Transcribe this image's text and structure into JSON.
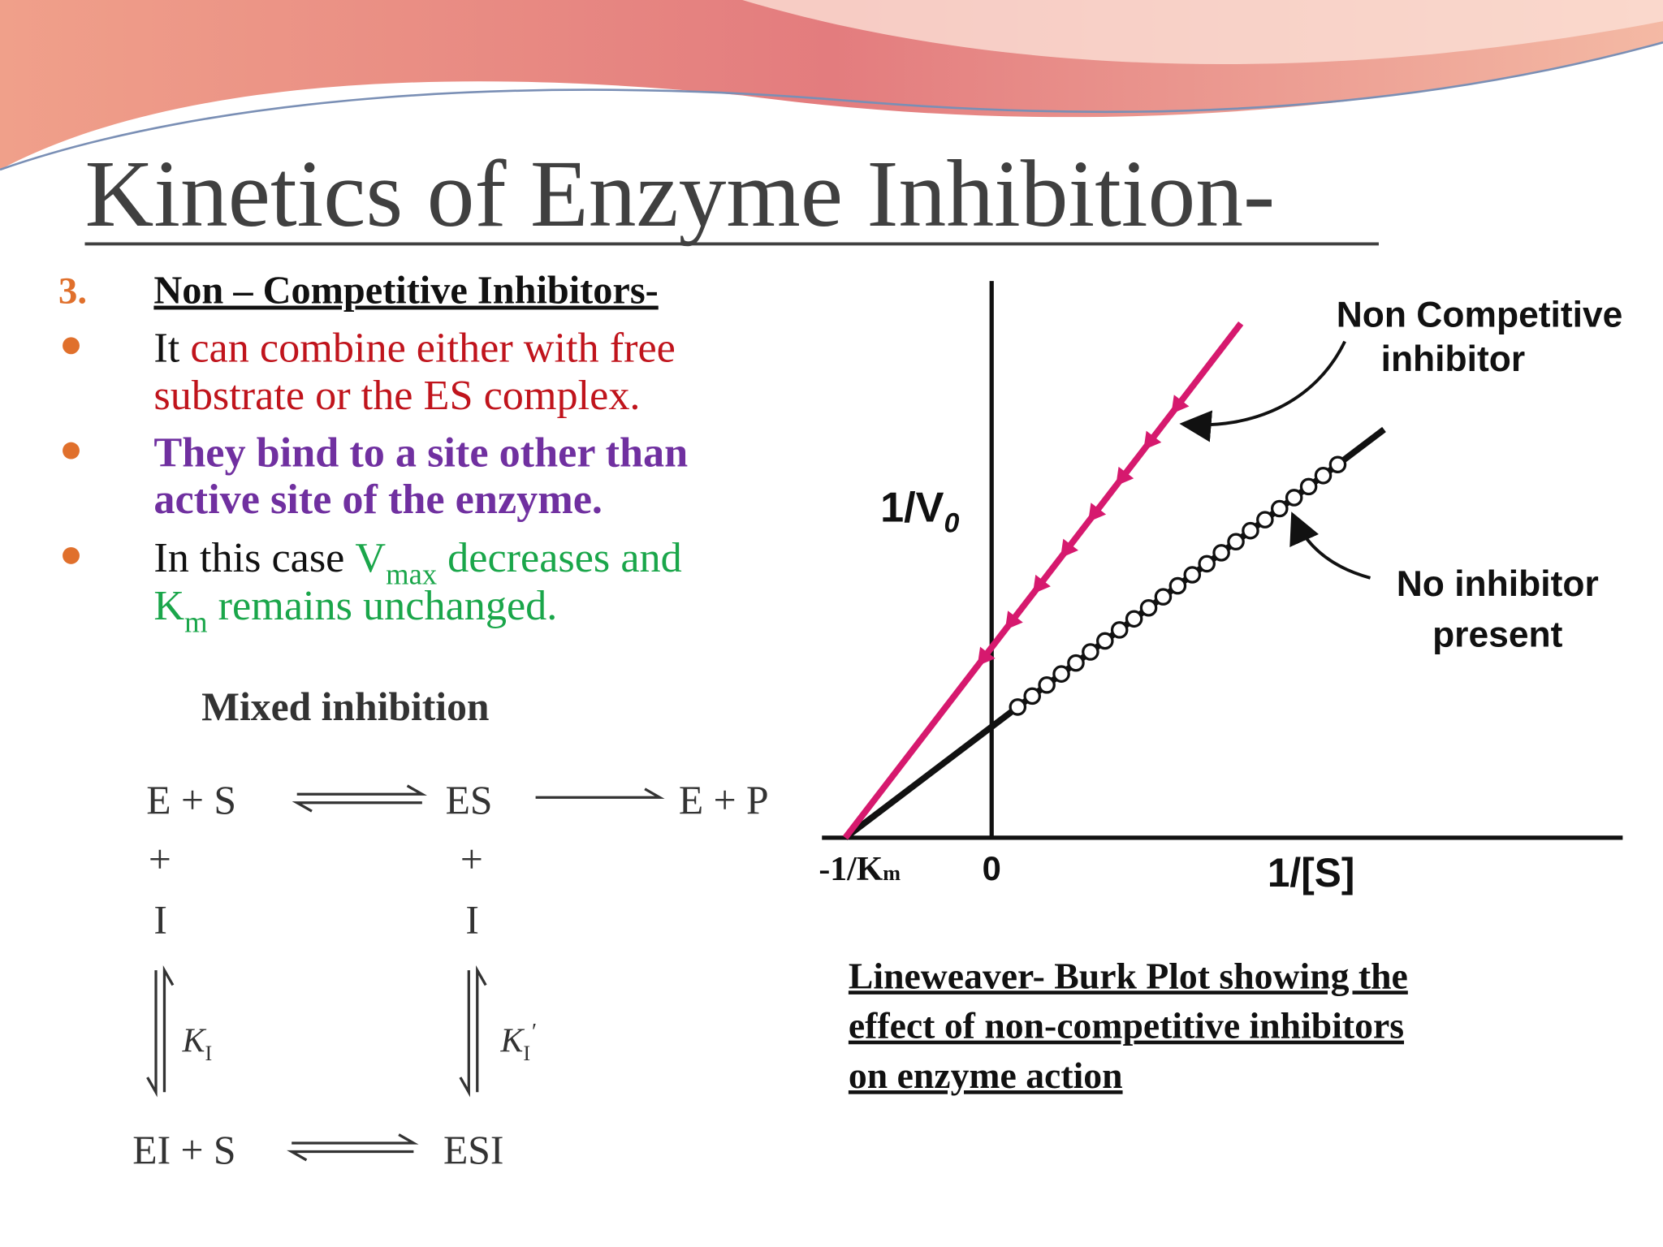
{
  "title": "Kinetics of Enzyme Inhibition-",
  "heading": {
    "number": "3.",
    "text": "Non – Competitive Inhibitors-"
  },
  "bullets": [
    {
      "lines": [
        [
          "It ",
          "can combine either with free"
        ],
        [
          "substrate or the ES complex."
        ]
      ]
    },
    {
      "lines": [
        [
          "They bind to a site other than"
        ],
        [
          "active site of the enzyme."
        ]
      ]
    },
    {
      "lines": [
        [
          "In this case ",
          "V",
          "max",
          " decreases and"
        ],
        [
          "K",
          "m",
          " remains unchanged."
        ]
      ]
    }
  ],
  "scheme": {
    "title": "Mixed inhibition",
    "e_s": "E + S",
    "es": "ES",
    "e_p": "E + P",
    "plus_left": "+",
    "plus_right": "+",
    "i_left": "I",
    "i_right": "I",
    "k_left": [
      "K",
      "I"
    ],
    "k_right": [
      "K",
      "I",
      "′"
    ],
    "ei_s": "EI + S",
    "esi": "ESI"
  },
  "plot": {
    "y_label": [
      "1/V",
      "0"
    ],
    "x_intercept": [
      "-1/K",
      "m"
    ],
    "origin": "0",
    "x_label": "1/[S]",
    "inhibitor_label": [
      "Non Competitive",
      "inhibitor"
    ],
    "no_inhibitor_label": [
      "No inhibitor",
      "present"
    ]
  },
  "caption": [
    "Lineweaver- Burk Plot showing the",
    "effect of non-competitive inhibitors",
    "on enzyme action"
  ]
}
